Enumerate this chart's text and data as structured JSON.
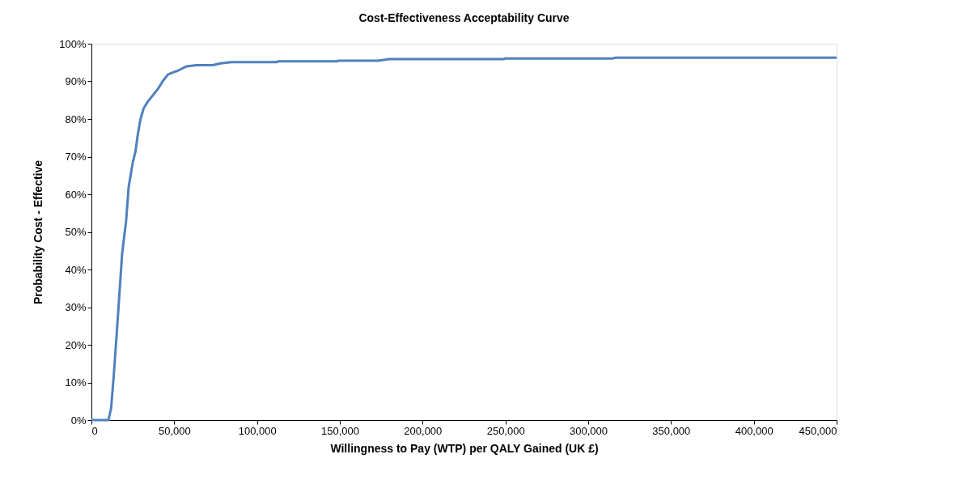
{
  "chart_data": {
    "type": "line",
    "title": "Cost-Effectiveness Acceptability Curve",
    "xlabel": "Willingness to Pay (WTP) per QALY Gained (UK £)",
    "ylabel": "Probability Cost - Effective",
    "series": [
      {
        "color": "#4f81bd",
        "x": [
          0,
          10300,
          11900,
          13600,
          16000,
          18500,
          19300,
          20900,
          22500,
          25000,
          26600,
          27900,
          29600,
          31500,
          34000,
          37300,
          40500,
          43000,
          46200,
          48700,
          52000,
          55200,
          57700,
          63400,
          73200,
          78100,
          84600,
          111600,
          112600,
          148400,
          149000,
          172900,
          180000,
          248900,
          249900,
          315000,
          316500,
          450000
        ],
        "values": [
          0,
          0,
          3.2,
          12.5,
          27.6,
          44,
          47,
          52.7,
          62,
          68.5,
          71.3,
          75.6,
          79.9,
          82.8,
          84.6,
          86.4,
          88.2,
          90,
          91.8,
          92.3,
          92.8,
          93.5,
          94,
          94.3,
          94.3,
          94.8,
          95.1,
          95.1,
          95.3,
          95.3,
          95.5,
          95.5,
          95.9,
          95.9,
          96.1,
          96.1,
          96.3,
          96.3
        ]
      }
    ],
    "xlim": [
      0,
      450000
    ],
    "xticks": [
      0,
      {
        "value": 50000,
        "label": "50,000"
      },
      {
        "value": 100000,
        "label": "100,000"
      },
      {
        "value": 150000,
        "label": "150,000"
      },
      {
        "value": 200000,
        "label": "200,000"
      },
      {
        "value": 250000,
        "label": "250,000"
      },
      {
        "value": 300000,
        "label": "300,000"
      },
      {
        "value": 350000,
        "label": "350,000"
      },
      {
        "value": 400000,
        "label": "400,000"
      },
      {
        "value": 450000,
        "label": "450,000"
      }
    ],
    "ylim": [
      0,
      100
    ],
    "yticks": [
      {
        "value": 0,
        "label": "0%"
      },
      {
        "value": 10,
        "label": "10%"
      },
      {
        "value": 20,
        "label": "20%"
      },
      {
        "value": 30,
        "label": "30%"
      },
      {
        "value": 40,
        "label": "40%"
      },
      {
        "value": 50,
        "label": "50%"
      },
      {
        "value": 60,
        "label": "60%"
      },
      {
        "value": 70,
        "label": "70%"
      },
      {
        "value": 80,
        "label": "80%"
      },
      {
        "value": 90,
        "label": "90%"
      },
      {
        "value": 100,
        "label": "100%"
      }
    ],
    "grid": false,
    "marker": "none",
    "line_style": "solid"
  }
}
